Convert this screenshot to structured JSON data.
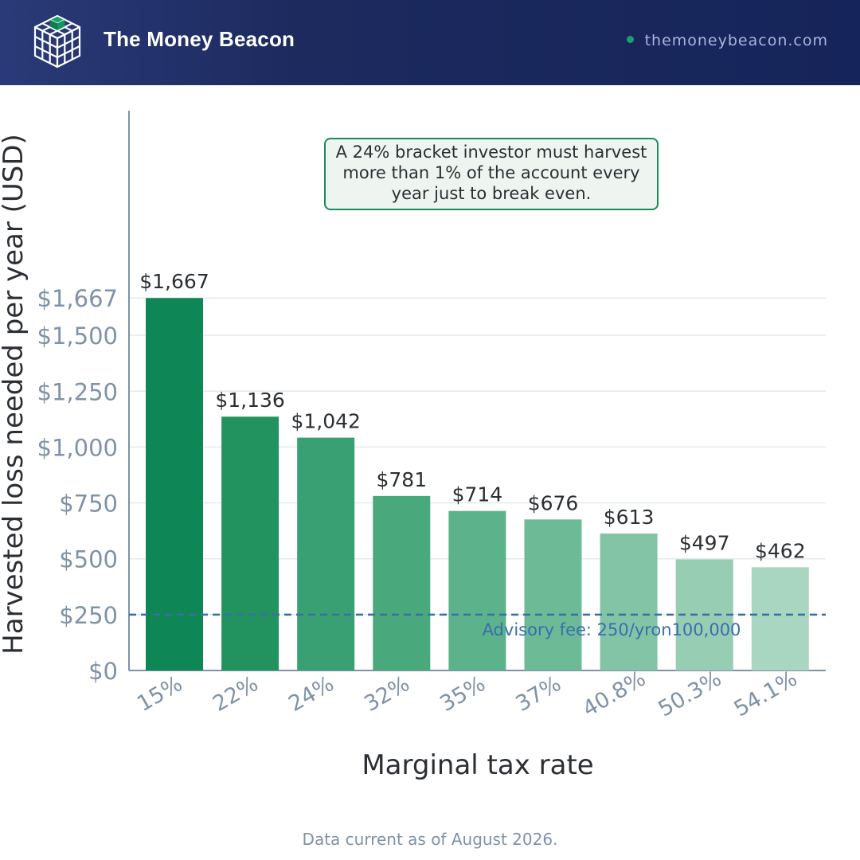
{
  "header": {
    "brand": "The Money Beacon",
    "website": "themoneybeacon.com"
  },
  "colors": {
    "header_bg": "#1c2a5e",
    "accent_green": "#0f8656",
    "fee_line": "#3a6db0",
    "axis": "#7f92a8"
  },
  "annotation": {
    "text": "A 24% bracket investor must harvest more than 1% of the account every year just to break even."
  },
  "chart_data": {
    "type": "bar",
    "xlabel": "Marginal tax rate",
    "ylabel": "Harvested loss needed per year (USD)",
    "categories": [
      "15%",
      "22%",
      "24%",
      "32%",
      "35%",
      "37%",
      "40.8%",
      "50.3%",
      "54.1%"
    ],
    "values": [
      1667,
      1136,
      1042,
      781,
      714,
      676,
      613,
      497,
      462
    ],
    "value_labels": [
      "$1,667",
      "$1,136",
      "$1,042",
      "$781",
      "$714",
      "$676",
      "$613",
      "$497",
      "$462"
    ],
    "bar_colors": [
      "#0f8656",
      "#22935f",
      "#38a072",
      "#4aa87d",
      "#5cb28b",
      "#6dbb96",
      "#82c4a5",
      "#97cdb2",
      "#a8d6c1"
    ],
    "yticks": [
      0,
      250,
      500,
      750,
      1000,
      1250,
      1500,
      1667
    ],
    "ytick_labels": [
      "$0",
      "$250",
      "$500",
      "$750",
      "$1,000",
      "$1,250",
      "$1,500",
      "$1,667"
    ],
    "ylim": [
      0,
      2350
    ],
    "grid": true,
    "reference_line": {
      "value": 250,
      "label": "Advisory fee: 250/yron100,000"
    }
  },
  "footer": {
    "note": "Data current as of August 2026."
  }
}
